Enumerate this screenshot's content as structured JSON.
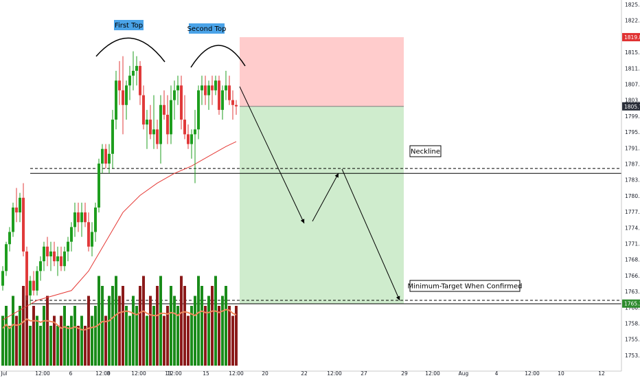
{
  "chart_data": {
    "type": "candlestick",
    "instrument_note": "",
    "price_axis": {
      "ylim": [
        1751.5,
        1827.5
      ],
      "ticks": [
        "1825.00",
        "1822.00",
        "1818.00",
        "1815.00",
        "1811.00",
        "1807.00",
        "1803.00",
        "1799.00",
        "1795.00",
        "1791.00",
        "1787.00",
        "1783.00",
        "1780.00",
        "1777.00",
        "1774.00",
        "1771.00",
        "1768.00",
        "1766.00",
        "1763.00",
        "1760.50",
        "1758.00",
        "1755.50",
        "1753.00"
      ],
      "badges": [
        {
          "label": "1819.89",
          "value": 1819.89,
          "color": "#e03131"
        },
        {
          "label": "1805.72",
          "value": 1805.72,
          "color": "#2a2e39"
        },
        {
          "label": "1765.33",
          "value": 1765.33,
          "color": "#2e8b2e"
        }
      ]
    },
    "time_axis": [
      "Jul",
      "12:00",
      "6",
      "12:00",
      "8",
      "12:00",
      "13",
      "12:00",
      "15",
      "12:00",
      "20",
      "22",
      "12:00",
      "27",
      "29",
      "12:00",
      "Aug",
      "4",
      "12:00",
      "10",
      "12"
    ],
    "candles": [
      {
        "o": 1769.0,
        "h": 1773.0,
        "l": 1768.0,
        "c": 1772.0
      },
      {
        "o": 1772.0,
        "h": 1778.0,
        "l": 1771.0,
        "c": 1777.5
      },
      {
        "o": 1777.5,
        "h": 1781.0,
        "l": 1776.0,
        "c": 1780.0
      },
      {
        "o": 1780.0,
        "h": 1786.0,
        "l": 1779.0,
        "c": 1785.0
      },
      {
        "o": 1785.0,
        "h": 1789.0,
        "l": 1782.0,
        "c": 1784.0
      },
      {
        "o": 1784.0,
        "h": 1788.0,
        "l": 1782.0,
        "c": 1787.0
      },
      {
        "o": 1787.0,
        "h": 1790.0,
        "l": 1775.0,
        "c": 1776.0
      },
      {
        "o": 1776.0,
        "h": 1777.0,
        "l": 1766.0,
        "c": 1767.0
      },
      {
        "o": 1767.0,
        "h": 1771.0,
        "l": 1765.0,
        "c": 1770.0
      },
      {
        "o": 1770.0,
        "h": 1772.0,
        "l": 1767.0,
        "c": 1768.0
      },
      {
        "o": 1768.0,
        "h": 1773.0,
        "l": 1767.0,
        "c": 1772.0
      },
      {
        "o": 1772.0,
        "h": 1775.0,
        "l": 1770.0,
        "c": 1774.0
      },
      {
        "o": 1774.0,
        "h": 1778.0,
        "l": 1772.0,
        "c": 1777.0
      },
      {
        "o": 1777.0,
        "h": 1779.0,
        "l": 1773.0,
        "c": 1775.0
      },
      {
        "o": 1775.0,
        "h": 1778.0,
        "l": 1772.0,
        "c": 1776.0
      },
      {
        "o": 1776.0,
        "h": 1778.0,
        "l": 1773.0,
        "c": 1774.0
      },
      {
        "o": 1774.0,
        "h": 1777.0,
        "l": 1771.0,
        "c": 1775.0
      },
      {
        "o": 1775.0,
        "h": 1777.0,
        "l": 1772.0,
        "c": 1773.0
      },
      {
        "o": 1773.0,
        "h": 1777.0,
        "l": 1772.0,
        "c": 1776.0
      },
      {
        "o": 1776.0,
        "h": 1779.0,
        "l": 1774.0,
        "c": 1778.0
      },
      {
        "o": 1778.0,
        "h": 1782.0,
        "l": 1776.0,
        "c": 1781.0
      },
      {
        "o": 1781.0,
        "h": 1786.0,
        "l": 1779.0,
        "c": 1784.0
      },
      {
        "o": 1784.0,
        "h": 1786.0,
        "l": 1780.0,
        "c": 1782.0
      },
      {
        "o": 1782.0,
        "h": 1786.0,
        "l": 1779.0,
        "c": 1784.0
      },
      {
        "o": 1784.0,
        "h": 1786.0,
        "l": 1781.0,
        "c": 1782.0
      },
      {
        "o": 1782.0,
        "h": 1784.0,
        "l": 1776.0,
        "c": 1777.0
      },
      {
        "o": 1777.0,
        "h": 1782.0,
        "l": 1775.0,
        "c": 1780.0
      },
      {
        "o": 1780.0,
        "h": 1786.0,
        "l": 1778.0,
        "c": 1785.0
      },
      {
        "o": 1785.0,
        "h": 1795.0,
        "l": 1784.0,
        "c": 1794.0
      },
      {
        "o": 1794.0,
        "h": 1798.0,
        "l": 1792.0,
        "c": 1797.0
      },
      {
        "o": 1797.0,
        "h": 1798.0,
        "l": 1793.0,
        "c": 1794.0
      },
      {
        "o": 1794.0,
        "h": 1798.0,
        "l": 1792.0,
        "c": 1796.0
      },
      {
        "o": 1796.0,
        "h": 1805.0,
        "l": 1793.0,
        "c": 1803.0
      },
      {
        "o": 1803.0,
        "h": 1813.0,
        "l": 1801.0,
        "c": 1811.0
      },
      {
        "o": 1811.0,
        "h": 1815.0,
        "l": 1806.0,
        "c": 1809.0
      },
      {
        "o": 1809.0,
        "h": 1816.0,
        "l": 1800.0,
        "c": 1806.0
      },
      {
        "o": 1806.0,
        "h": 1811.0,
        "l": 1803.0,
        "c": 1810.0
      },
      {
        "o": 1810.0,
        "h": 1814.0,
        "l": 1807.0,
        "c": 1812.0
      },
      {
        "o": 1812.0,
        "h": 1817.0,
        "l": 1809.0,
        "c": 1813.0
      },
      {
        "o": 1813.0,
        "h": 1816.0,
        "l": 1810.0,
        "c": 1814.0
      },
      {
        "o": 1814.0,
        "h": 1815.0,
        "l": 1806.0,
        "c": 1808.0
      },
      {
        "o": 1808.0,
        "h": 1810.0,
        "l": 1801.0,
        "c": 1802.0
      },
      {
        "o": 1802.0,
        "h": 1805.0,
        "l": 1797.0,
        "c": 1803.0
      },
      {
        "o": 1803.0,
        "h": 1806.0,
        "l": 1799.0,
        "c": 1800.0
      },
      {
        "o": 1800.0,
        "h": 1808.0,
        "l": 1797.0,
        "c": 1801.0
      },
      {
        "o": 1801.0,
        "h": 1803.0,
        "l": 1797.0,
        "c": 1798.0
      },
      {
        "o": 1798.0,
        "h": 1808.0,
        "l": 1794.0,
        "c": 1806.0
      },
      {
        "o": 1806.0,
        "h": 1809.0,
        "l": 1803.0,
        "c": 1804.0
      },
      {
        "o": 1804.0,
        "h": 1808.0,
        "l": 1798.0,
        "c": 1800.0
      },
      {
        "o": 1800.0,
        "h": 1810.0,
        "l": 1798.0,
        "c": 1807.0
      },
      {
        "o": 1807.0,
        "h": 1811.0,
        "l": 1803.0,
        "c": 1809.0
      },
      {
        "o": 1809.0,
        "h": 1812.0,
        "l": 1806.0,
        "c": 1810.0
      },
      {
        "o": 1810.0,
        "h": 1812.0,
        "l": 1801.0,
        "c": 1803.0
      },
      {
        "o": 1803.0,
        "h": 1808.0,
        "l": 1799.0,
        "c": 1800.0
      },
      {
        "o": 1800.0,
        "h": 1802.0,
        "l": 1797.0,
        "c": 1798.0
      },
      {
        "o": 1798.0,
        "h": 1801.0,
        "l": 1795.0,
        "c": 1800.0
      },
      {
        "o": 1800.0,
        "h": 1805.0,
        "l": 1790.0,
        "c": 1801.0
      },
      {
        "o": 1801.0,
        "h": 1810.0,
        "l": 1799.0,
        "c": 1809.0
      },
      {
        "o": 1809.0,
        "h": 1812.0,
        "l": 1806.0,
        "c": 1810.0
      },
      {
        "o": 1810.0,
        "h": 1812.0,
        "l": 1806.0,
        "c": 1808.0
      },
      {
        "o": 1808.0,
        "h": 1811.0,
        "l": 1805.0,
        "c": 1810.0
      },
      {
        "o": 1810.0,
        "h": 1812.0,
        "l": 1806.0,
        "c": 1809.0
      },
      {
        "o": 1809.0,
        "h": 1812.0,
        "l": 1808.0,
        "c": 1811.0
      },
      {
        "o": 1811.0,
        "h": 1812.0,
        "l": 1804.0,
        "c": 1805.0
      },
      {
        "o": 1805.0,
        "h": 1810.0,
        "l": 1803.0,
        "c": 1809.0
      },
      {
        "o": 1809.0,
        "h": 1813.0,
        "l": 1807.0,
        "c": 1810.0
      },
      {
        "o": 1810.0,
        "h": 1812.0,
        "l": 1806.0,
        "c": 1807.0
      },
      {
        "o": 1807.0,
        "h": 1809.0,
        "l": 1803.0,
        "c": 1806.0
      },
      {
        "o": 1806.0,
        "h": 1807.0,
        "l": 1804.0,
        "c": 1805.72
      }
    ],
    "volume": [
      5,
      6,
      4,
      7,
      5,
      6,
      8,
      9,
      4,
      6,
      5,
      4,
      6,
      7,
      4,
      5,
      4,
      5,
      6,
      4,
      5,
      6,
      4,
      5,
      4,
      7,
      5,
      6,
      9,
      8,
      5,
      7,
      8,
      9,
      7,
      8,
      6,
      5,
      7,
      6,
      8,
      9,
      5,
      7,
      6,
      8,
      9,
      5,
      6,
      8,
      7,
      6,
      9,
      8,
      5,
      6,
      7,
      9,
      8,
      6,
      7,
      8,
      9,
      6,
      7,
      8,
      6,
      5,
      6
    ],
    "volume_ma_note": "",
    "moving_average": [
      {
        "i": 0,
        "v": 1762.0
      },
      {
        "i": 10,
        "v": 1766.0
      },
      {
        "i": 20,
        "v": 1768.0
      },
      {
        "i": 25,
        "v": 1772.0
      },
      {
        "i": 30,
        "v": 1778.0
      },
      {
        "i": 35,
        "v": 1784.0
      },
      {
        "i": 40,
        "v": 1787.5
      },
      {
        "i": 45,
        "v": 1790.0
      },
      {
        "i": 50,
        "v": 1792.0
      },
      {
        "i": 55,
        "v": 1793.5
      },
      {
        "i": 60,
        "v": 1795.5
      },
      {
        "i": 65,
        "v": 1797.5
      },
      {
        "i": 68,
        "v": 1798.5
      }
    ],
    "levels": {
      "neckline_solid": 1792.0,
      "neckline_dashed": 1793.0,
      "target_solid": 1765.3,
      "target_dashed": 1766.0
    },
    "position": {
      "entry": 1805.72,
      "stop": 1819.89,
      "target": 1765.33
    },
    "annotations": {
      "first_top": "First Top",
      "second_top": "Second Top",
      "neckline": "Neckline",
      "target": "Minimum-Target When Confirmed"
    },
    "colors": {
      "up": "#1e9e1e",
      "down": "#e03a3a",
      "vol_up": "#1a8c1a",
      "vol_down": "#8b1a1a",
      "ma": "#e53935",
      "vol_ma": "#f08a5d",
      "risk_zone": "#ffcccc",
      "reward_zone": "#cfeccd",
      "label_blue": "#4aa3e8"
    }
  }
}
